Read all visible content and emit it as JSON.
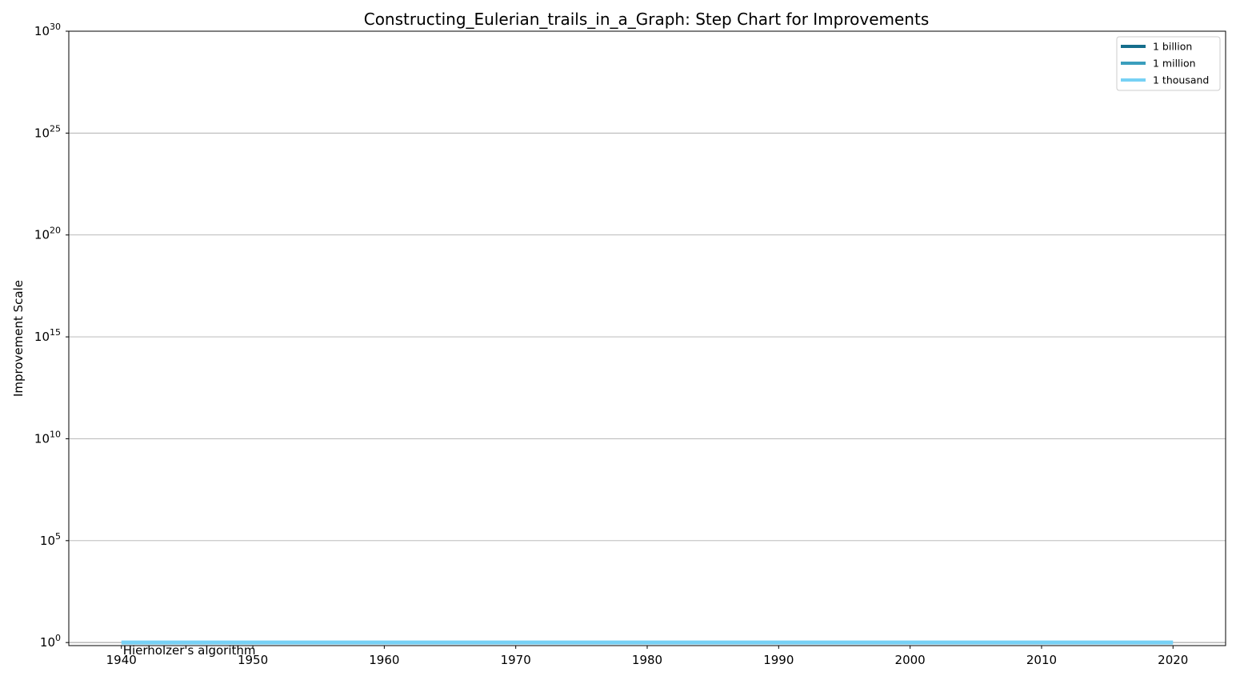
{
  "chart_data": {
    "type": "line",
    "title": "Constructing_Eulerian_trails_in_a_Graph: Step Chart for Improvements",
    "xlabel": "",
    "ylabel": "Improvement Scale",
    "xlim": [
      1936,
      2024
    ],
    "xticks": [
      1940,
      1950,
      1960,
      1970,
      1980,
      1990,
      2000,
      2010,
      2020
    ],
    "yscale": "log",
    "ylim_exp": [
      -0.15,
      30
    ],
    "yticks_exp": [
      0,
      5,
      10,
      15,
      20,
      25,
      30
    ],
    "ytick_base": "10",
    "grid": "horizontal",
    "legend_position": "top-right",
    "legend": [
      {
        "label": "1 billion",
        "color": "#156e8c"
      },
      {
        "label": "1 million",
        "color": "#3a9ebd"
      },
      {
        "label": "1 thousand",
        "color": "#77d1f5"
      }
    ],
    "series": [
      {
        "x": [
          1940,
          2020
        ],
        "y": [
          1,
          1
        ],
        "color": "#77d1f5",
        "step": "post"
      }
    ],
    "reference_lines": [
      {
        "y": 1,
        "color": "#999999"
      }
    ],
    "annotations": [
      {
        "text": "Hierholzer's algorithm",
        "x": 1940,
        "y": 1
      }
    ]
  }
}
